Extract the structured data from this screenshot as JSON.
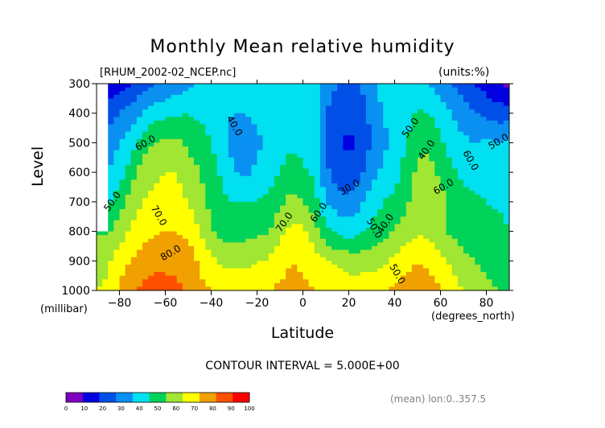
{
  "chart_data": {
    "type": "heatmap",
    "title": "Monthly Mean relative humidity",
    "subtitle": "[RHUM_2002-02_NCEP.nc]",
    "units": "(units:%)",
    "xlabel": "Latitude",
    "xunit": "(degrees_north)",
    "ylabel": "Level",
    "yunit": "(millibar)",
    "xlim": [
      -90,
      90
    ],
    "ylim": [
      1000,
      300
    ],
    "xticks": [
      -80,
      -60,
      -40,
      -20,
      0,
      20,
      40,
      60,
      80
    ],
    "yticks": [
      300,
      400,
      500,
      600,
      700,
      800,
      900,
      1000
    ],
    "levels": [
      0,
      10,
      20,
      30,
      40,
      50,
      60,
      70,
      80,
      90,
      100
    ],
    "colors": [
      "#8000c0",
      "#0000e0",
      "#0050e8",
      "#0a90f0",
      "#00e0f0",
      "#00d25a",
      "#a0e632",
      "#ffff00",
      "#f0a000",
      "#ff5000",
      "#ff0000"
    ],
    "contour_interval": "CONTOUR INTERVAL = 5.000E+00",
    "contour_labels": [
      "50.0",
      "40.0",
      "60.0",
      "50.0",
      "70.0",
      "80.0",
      "60.0",
      "50.0",
      "30.0",
      "40.0",
      "50.0",
      "60.0",
      "70.0",
      "60.0",
      "50.0",
      "40.0"
    ],
    "colorbar_ticks": [
      "0",
      "10",
      "20",
      "30",
      "40",
      "50",
      "60",
      "70",
      "80",
      "90",
      "100"
    ],
    "profiles": [
      {
        "lat": -90,
        "rh": [
          null,
          null,
          null,
          null,
          null,
          60,
          65,
          70
        ]
      },
      {
        "lat": -85,
        "rh": [
          15,
          25,
          35,
          40,
          48,
          58,
          68,
          72
        ]
      },
      {
        "lat": -80,
        "rh": [
          15,
          30,
          40,
          45,
          55,
          65,
          75,
          82
        ]
      },
      {
        "lat": -75,
        "rh": [
          20,
          35,
          45,
          55,
          65,
          72,
          80,
          88
        ]
      },
      {
        "lat": -70,
        "rh": [
          25,
          40,
          55,
          65,
          70,
          75,
          85,
          92
        ]
      },
      {
        "lat": -65,
        "rh": [
          30,
          45,
          60,
          68,
          72,
          78,
          88,
          93
        ]
      },
      {
        "lat": -60,
        "rh": [
          32,
          47,
          62,
          70,
          74,
          80,
          88,
          93
        ]
      },
      {
        "lat": -55,
        "rh": [
          35,
          48,
          62,
          70,
          73,
          80,
          87,
          92
        ]
      },
      {
        "lat": -50,
        "rh": [
          38,
          50,
          58,
          64,
          70,
          78,
          85,
          88
        ]
      },
      {
        "lat": -45,
        "rh": [
          40,
          48,
          55,
          60,
          64,
          70,
          78,
          83
        ]
      },
      {
        "lat": -40,
        "rh": [
          42,
          45,
          50,
          55,
          57,
          62,
          72,
          80
        ]
      },
      {
        "lat": -35,
        "rh": [
          44,
          42,
          42,
          48,
          52,
          55,
          68,
          77
        ]
      },
      {
        "lat": -30,
        "rh": [
          45,
          40,
          36,
          40,
          50,
          55,
          67,
          77
        ]
      },
      {
        "lat": -25,
        "rh": [
          46,
          40,
          35,
          38,
          50,
          56,
          68,
          77
        ]
      },
      {
        "lat": -20,
        "rh": [
          48,
          42,
          38,
          42,
          50,
          58,
          69,
          78
        ]
      },
      {
        "lat": -15,
        "rh": [
          50,
          45,
          42,
          46,
          52,
          59,
          71,
          80
        ]
      },
      {
        "lat": -10,
        "rh": [
          50,
          48,
          46,
          50,
          58,
          67,
          76,
          82
        ]
      },
      {
        "lat": -5,
        "rh": [
          50,
          48,
          48,
          55,
          63,
          73,
          80,
          83
        ]
      },
      {
        "lat": 0,
        "rh": [
          48,
          47,
          46,
          52,
          60,
          72,
          78,
          82
        ]
      },
      {
        "lat": 5,
        "rh": [
          45,
          44,
          44,
          48,
          55,
          65,
          74,
          80
        ]
      },
      {
        "lat": 10,
        "rh": [
          35,
          30,
          28,
          32,
          40,
          52,
          70,
          78
        ]
      },
      {
        "lat": 15,
        "rh": [
          30,
          25,
          22,
          25,
          35,
          48,
          68,
          77
        ]
      },
      {
        "lat": 20,
        "rh": [
          28,
          22,
          18,
          22,
          32,
          45,
          66,
          75
        ]
      },
      {
        "lat": 25,
        "rh": [
          30,
          25,
          22,
          27,
          38,
          48,
          65,
          76
        ]
      },
      {
        "lat": 30,
        "rh": [
          38,
          33,
          30,
          37,
          45,
          52,
          66,
          78
        ]
      },
      {
        "lat": 35,
        "rh": [
          44,
          40,
          38,
          42,
          50,
          56,
          67,
          78
        ]
      },
      {
        "lat": 40,
        "rh": [
          44,
          44,
          42,
          45,
          52,
          62,
          72,
          82
        ]
      },
      {
        "lat": 45,
        "rh": [
          44,
          45,
          50,
          55,
          58,
          65,
          76,
          86
        ]
      },
      {
        "lat": 50,
        "rh": [
          43,
          52,
          58,
          62,
          65,
          68,
          80,
          88
        ]
      },
      {
        "lat": 55,
        "rh": [
          40,
          50,
          58,
          64,
          70,
          68,
          78,
          85
        ]
      },
      {
        "lat": 60,
        "rh": [
          35,
          45,
          52,
          58,
          64,
          62,
          72,
          82
        ]
      },
      {
        "lat": 65,
        "rh": [
          30,
          40,
          45,
          52,
          55,
          58,
          68,
          75
        ]
      },
      {
        "lat": 70,
        "rh": [
          25,
          35,
          42,
          48,
          52,
          55,
          63,
          70
        ]
      },
      {
        "lat": 75,
        "rh": [
          20,
          30,
          40,
          46,
          52,
          55,
          60,
          66
        ]
      },
      {
        "lat": 80,
        "rh": [
          15,
          28,
          42,
          45,
          50,
          55,
          58,
          62
        ]
      },
      {
        "lat": 85,
        "rh": [
          10,
          25,
          40,
          42,
          48,
          55,
          56,
          60
        ]
      },
      {
        "lat": 90,
        "rh": [
          8,
          25,
          42,
          42,
          45,
          50,
          55,
          58
        ]
      }
    ]
  },
  "footnote": "(mean) lon:0..357.5"
}
